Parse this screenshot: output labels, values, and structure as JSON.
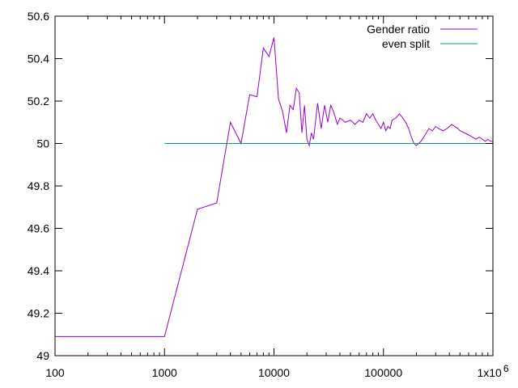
{
  "chart_data": {
    "type": "line",
    "x_scale": "log",
    "xlim": [
      100,
      1000000
    ],
    "ylim": [
      49,
      50.6
    ],
    "x_ticks": [
      {
        "value": 100,
        "label": "100"
      },
      {
        "value": 1000,
        "label": "1000"
      },
      {
        "value": 10000,
        "label": "10000"
      },
      {
        "value": 100000,
        "label": "100000"
      },
      {
        "value": 1000000,
        "label": "1x10",
        "exp": "6"
      }
    ],
    "y_ticks": [
      {
        "value": 49,
        "label": "49"
      },
      {
        "value": 49.2,
        "label": "49.2"
      },
      {
        "value": 49.4,
        "label": "49.4"
      },
      {
        "value": 49.6,
        "label": "49.6"
      },
      {
        "value": 49.8,
        "label": "49.8"
      },
      {
        "value": 50,
        "label": "50"
      },
      {
        "value": 50.2,
        "label": "50.2"
      },
      {
        "value": 50.4,
        "label": "50.4"
      },
      {
        "value": 50.6,
        "label": "50.6"
      }
    ],
    "grid": false,
    "legend_position": "top-right",
    "series": [
      {
        "name": "Gender ratio",
        "color": "#9400d3",
        "x": [
          100,
          1000,
          2000,
          3000,
          4000,
          5000,
          6000,
          7000,
          8000,
          9000,
          10000,
          11000,
          12000,
          13000,
          14000,
          15000,
          16000,
          17000,
          18000,
          19000,
          20000,
          21000,
          22000,
          23000,
          25000,
          27000,
          29000,
          31000,
          33000,
          35000,
          38000,
          40000,
          45000,
          50000,
          55000,
          60000,
          65000,
          70000,
          75000,
          80000,
          85000,
          90000,
          95000,
          100000,
          105000,
          110000,
          115000,
          120000,
          130000,
          140000,
          150000,
          160000,
          170000,
          180000,
          190000,
          200000,
          220000,
          240000,
          260000,
          280000,
          300000,
          320000,
          350000,
          380000,
          400000,
          420000,
          450000,
          480000,
          500000,
          550000,
          600000,
          650000,
          700000,
          750000,
          800000,
          850000,
          900000,
          950000,
          1000000
        ],
        "y": [
          49.09,
          49.09,
          49.69,
          49.72,
          50.1,
          50.0,
          50.23,
          50.22,
          50.45,
          50.41,
          50.5,
          50.21,
          50.15,
          50.05,
          50.18,
          50.16,
          50.26,
          50.24,
          50.05,
          50.18,
          50.02,
          49.99,
          50.05,
          50.02,
          50.19,
          50.07,
          50.18,
          50.1,
          50.18,
          50.15,
          50.09,
          50.12,
          50.1,
          50.11,
          50.09,
          50.11,
          50.1,
          50.14,
          50.12,
          50.14,
          50.11,
          50.09,
          50.07,
          50.1,
          50.06,
          50.08,
          50.07,
          50.11,
          50.12,
          50.14,
          50.12,
          50.1,
          50.07,
          50.03,
          50.0,
          49.99,
          50.01,
          50.04,
          50.07,
          50.06,
          50.08,
          50.07,
          50.06,
          50.07,
          50.08,
          50.09,
          50.08,
          50.07,
          50.06,
          50.05,
          50.04,
          50.03,
          50.02,
          50.03,
          50.02,
          50.01,
          50.02,
          50.01,
          50.01
        ]
      },
      {
        "name": "even split",
        "color": "#009e73",
        "x": [
          1000,
          1000000
        ],
        "y": [
          50,
          50
        ]
      }
    ]
  }
}
